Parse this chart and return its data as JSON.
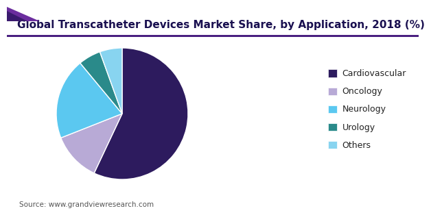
{
  "title": "Global Transcatheter Devices Market Share, by Application, 2018 (%)",
  "labels": [
    "Cardiovascular",
    "Oncology",
    "Neurology",
    "Urology",
    "Others"
  ],
  "values": [
    57.0,
    12.0,
    20.0,
    5.5,
    5.5
  ],
  "colors": [
    "#2d1b5e",
    "#b8aad6",
    "#5bc8f0",
    "#2a8a8a",
    "#88d4f0"
  ],
  "startangle": 90,
  "legend_fontsize": 9,
  "title_fontsize": 11,
  "source_text": "Source: www.grandviewresearch.com",
  "background_color": "#ffffff",
  "header_line_color": "#4a2080",
  "title_color": "#1a1050",
  "source_color": "#555555"
}
